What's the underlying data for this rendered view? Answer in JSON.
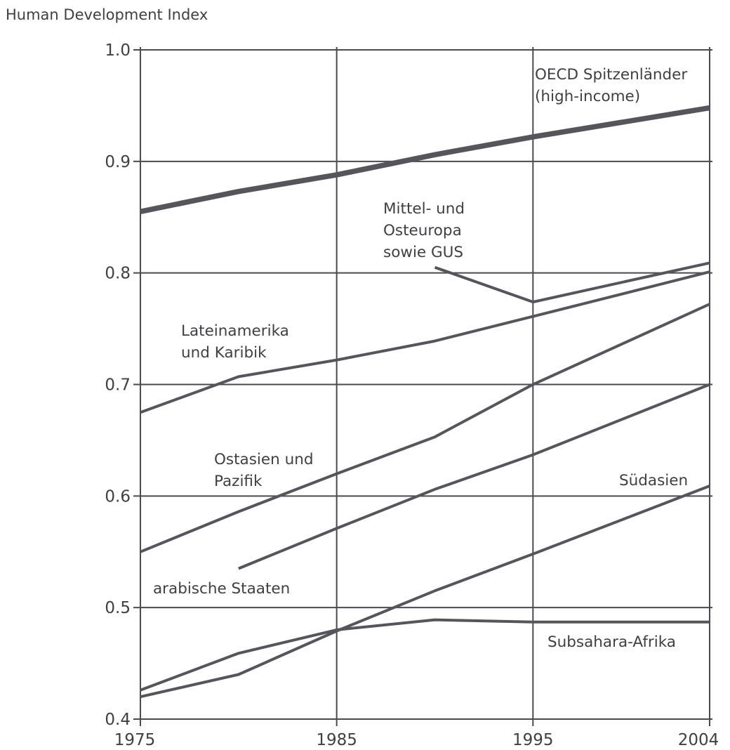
{
  "chart_data": {
    "type": "line",
    "ylabel": "Human Development Index",
    "xlabel": "",
    "xlim": [
      1975,
      2004
    ],
    "ylim": [
      0.4,
      1.0
    ],
    "x_ticks": [
      "1975",
      "1985",
      "1995",
      "2004"
    ],
    "y_ticks": [
      "1.0",
      "0.9",
      "0.8",
      "0.7",
      "0.6",
      "0.5",
      "0.4"
    ],
    "grid": true,
    "series": [
      {
        "name": "OECD Spitzenländer (high-income)",
        "label_lines": [
          "OECD Spitzenländer",
          "(high-income)"
        ],
        "weight": "bold",
        "x": [
          1975,
          1980,
          1985,
          1990,
          1995,
          2004
        ],
        "y": [
          0.855,
          0.873,
          0.888,
          0.906,
          0.922,
          0.948
        ]
      },
      {
        "name": "Mittel- und Osteuropa sowie GUS",
        "label_lines": [
          "Mittel- und",
          "Osteuropa",
          "sowie GUS"
        ],
        "weight": "normal",
        "x": [
          1990,
          1995,
          2004
        ],
        "y": [
          0.805,
          0.774,
          0.809
        ]
      },
      {
        "name": "Lateinamerika und Karibik",
        "label_lines": [
          "Lateinamerika",
          "und Karibik"
        ],
        "weight": "normal",
        "x": [
          1975,
          1980,
          1985,
          1990,
          1995,
          2004
        ],
        "y": [
          0.675,
          0.707,
          0.722,
          0.739,
          0.761,
          0.801
        ]
      },
      {
        "name": "Ostasien und Pazifik",
        "label_lines": [
          "Ostasien und",
          "Pazifik"
        ],
        "weight": "normal",
        "x": [
          1975,
          1980,
          1985,
          1990,
          1995,
          2004
        ],
        "y": [
          0.55,
          0.586,
          0.62,
          0.653,
          0.7,
          0.772
        ]
      },
      {
        "name": "arabische Staaten",
        "label_lines": [
          "arabische Staaten"
        ],
        "weight": "normal",
        "x": [
          1980,
          1985,
          1990,
          1995,
          2004
        ],
        "y": [
          0.535,
          0.571,
          0.606,
          0.637,
          0.7
        ]
      },
      {
        "name": "Südasien",
        "label_lines": [
          "Südasien"
        ],
        "weight": "normal",
        "x": [
          1975,
          1980,
          1985,
          1990,
          1995,
          2004
        ],
        "y": [
          0.42,
          0.44,
          0.479,
          0.515,
          0.548,
          0.609
        ]
      },
      {
        "name": "Subsahara-Afrika",
        "label_lines": [
          "Subsahara-Afrika"
        ],
        "weight": "normal",
        "x": [
          1975,
          1980,
          1985,
          1990,
          1995,
          2004
        ],
        "y": [
          0.426,
          0.459,
          0.48,
          0.489,
          0.487,
          0.487
        ]
      }
    ]
  }
}
